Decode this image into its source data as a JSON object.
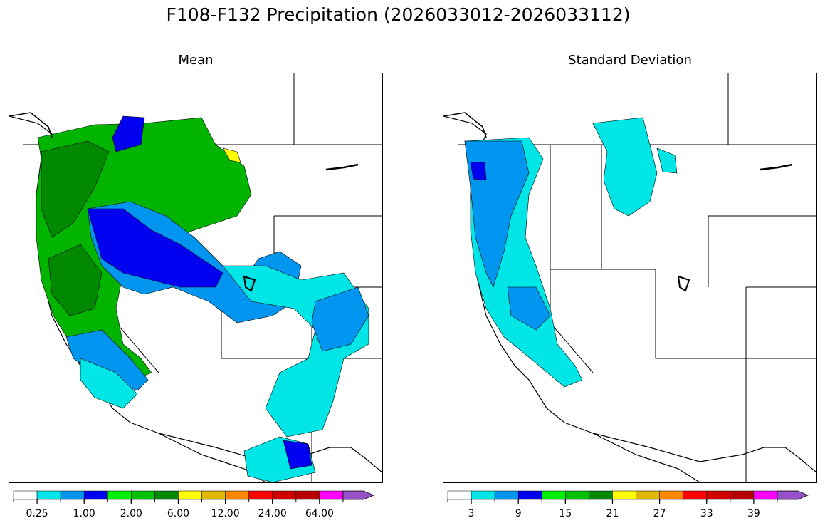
{
  "title": "F108-F132 Precipitation (2026033012-2026033112)",
  "panels": [
    {
      "title": "Mean",
      "colorbar": {
        "colors": [
          "#ffffff",
          "#00e5e5",
          "#0096f0",
          "#0000f0",
          "#00f000",
          "#00c000",
          "#008800",
          "#ffff00",
          "#e0b800",
          "#ff8800",
          "#ff0000",
          "#d00000",
          "#b80000",
          "#ff00ff",
          "#9650c8"
        ],
        "tick_labels": [
          "0.25",
          "1.00",
          "2.00",
          "6.00",
          "12.00",
          "24.00",
          "64.00"
        ],
        "extend": "max"
      }
    },
    {
      "title": "Standard Deviation",
      "colorbar": {
        "colors": [
          "#ffffff",
          "#00e5e5",
          "#0096f0",
          "#0000f0",
          "#00f000",
          "#00c000",
          "#008800",
          "#ffff00",
          "#e0b800",
          "#ff8800",
          "#ff0000",
          "#d00000",
          "#b80000",
          "#ff00ff",
          "#9650c8"
        ],
        "tick_labels": [
          "3",
          "9",
          "15",
          "21",
          "27",
          "33",
          "39"
        ],
        "extend": "max"
      }
    }
  ]
}
